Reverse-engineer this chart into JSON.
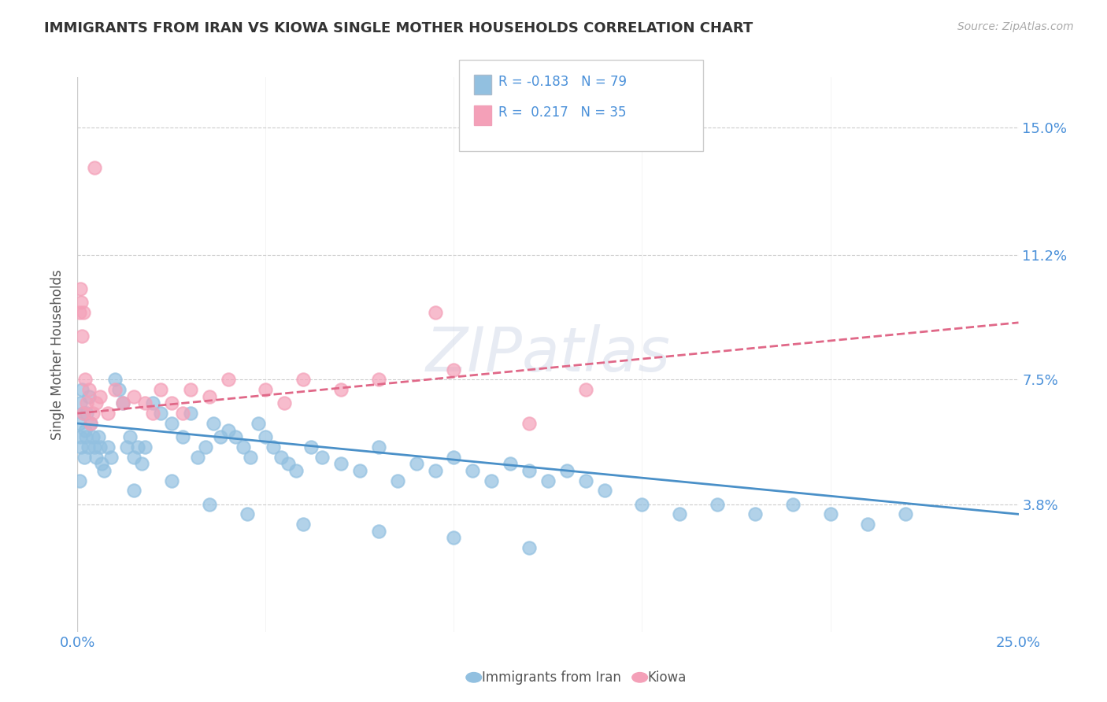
{
  "title": "IMMIGRANTS FROM IRAN VS KIOWA SINGLE MOTHER HOUSEHOLDS CORRELATION CHART",
  "source_text": "Source: ZipAtlas.com",
  "ylabel": "Single Mother Households",
  "xlim": [
    0.0,
    25.0
  ],
  "ylim": [
    0.0,
    16.5
  ],
  "yticks": [
    3.8,
    7.5,
    11.2,
    15.0
  ],
  "ytick_labels": [
    "3.8%",
    "7.5%",
    "11.2%",
    "15.0%"
  ],
  "xtick_labels": [
    "0.0%",
    "25.0%"
  ],
  "legend_label1": "Immigrants from Iran",
  "legend_label2": "Kiowa",
  "color_iran": "#92c0e0",
  "color_kiowa": "#f4a0b8",
  "trendline_iran_color": "#4a90c8",
  "trendline_kiowa_color": "#e06888",
  "watermark": "ZIPatlas",
  "background_color": "#ffffff",
  "iran_scatter": [
    [
      0.05,
      6.2
    ],
    [
      0.07,
      5.8
    ],
    [
      0.08,
      6.8
    ],
    [
      0.1,
      5.5
    ],
    [
      0.12,
      7.2
    ],
    [
      0.15,
      6.5
    ],
    [
      0.18,
      5.2
    ],
    [
      0.2,
      6.0
    ],
    [
      0.22,
      5.8
    ],
    [
      0.25,
      6.5
    ],
    [
      0.28,
      5.5
    ],
    [
      0.3,
      7.0
    ],
    [
      0.35,
      6.2
    ],
    [
      0.4,
      5.8
    ],
    [
      0.45,
      5.5
    ],
    [
      0.5,
      5.2
    ],
    [
      0.55,
      5.8
    ],
    [
      0.6,
      5.5
    ],
    [
      0.65,
      5.0
    ],
    [
      0.7,
      4.8
    ],
    [
      0.8,
      5.5
    ],
    [
      0.9,
      5.2
    ],
    [
      1.0,
      7.5
    ],
    [
      1.1,
      7.2
    ],
    [
      1.2,
      6.8
    ],
    [
      1.3,
      5.5
    ],
    [
      1.4,
      5.8
    ],
    [
      1.5,
      5.2
    ],
    [
      1.6,
      5.5
    ],
    [
      1.7,
      5.0
    ],
    [
      1.8,
      5.5
    ],
    [
      2.0,
      6.8
    ],
    [
      2.2,
      6.5
    ],
    [
      2.5,
      6.2
    ],
    [
      2.8,
      5.8
    ],
    [
      3.0,
      6.5
    ],
    [
      3.2,
      5.2
    ],
    [
      3.4,
      5.5
    ],
    [
      3.6,
      6.2
    ],
    [
      3.8,
      5.8
    ],
    [
      4.0,
      6.0
    ],
    [
      4.2,
      5.8
    ],
    [
      4.4,
      5.5
    ],
    [
      4.6,
      5.2
    ],
    [
      4.8,
      6.2
    ],
    [
      5.0,
      5.8
    ],
    [
      5.2,
      5.5
    ],
    [
      5.4,
      5.2
    ],
    [
      5.6,
      5.0
    ],
    [
      5.8,
      4.8
    ],
    [
      6.2,
      5.5
    ],
    [
      6.5,
      5.2
    ],
    [
      7.0,
      5.0
    ],
    [
      7.5,
      4.8
    ],
    [
      8.0,
      5.5
    ],
    [
      8.5,
      4.5
    ],
    [
      9.0,
      5.0
    ],
    [
      9.5,
      4.8
    ],
    [
      10.0,
      5.2
    ],
    [
      10.5,
      4.8
    ],
    [
      11.0,
      4.5
    ],
    [
      11.5,
      5.0
    ],
    [
      12.0,
      4.8
    ],
    [
      12.5,
      4.5
    ],
    [
      13.0,
      4.8
    ],
    [
      13.5,
      4.5
    ],
    [
      14.0,
      4.2
    ],
    [
      15.0,
      3.8
    ],
    [
      16.0,
      3.5
    ],
    [
      17.0,
      3.8
    ],
    [
      18.0,
      3.5
    ],
    [
      19.0,
      3.8
    ],
    [
      20.0,
      3.5
    ],
    [
      21.0,
      3.2
    ],
    [
      22.0,
      3.5
    ],
    [
      0.05,
      4.5
    ],
    [
      1.5,
      4.2
    ],
    [
      2.5,
      4.5
    ],
    [
      3.5,
      3.8
    ],
    [
      4.5,
      3.5
    ],
    [
      6.0,
      3.2
    ],
    [
      8.0,
      3.0
    ],
    [
      10.0,
      2.8
    ],
    [
      12.0,
      2.5
    ]
  ],
  "kiowa_scatter": [
    [
      0.05,
      9.5
    ],
    [
      0.08,
      10.2
    ],
    [
      0.1,
      9.8
    ],
    [
      0.12,
      8.8
    ],
    [
      0.15,
      9.5
    ],
    [
      0.2,
      7.5
    ],
    [
      0.25,
      6.8
    ],
    [
      0.3,
      7.2
    ],
    [
      0.4,
      6.5
    ],
    [
      0.5,
      6.8
    ],
    [
      0.6,
      7.0
    ],
    [
      0.8,
      6.5
    ],
    [
      1.0,
      7.2
    ],
    [
      1.2,
      6.8
    ],
    [
      1.5,
      7.0
    ],
    [
      1.8,
      6.8
    ],
    [
      2.0,
      6.5
    ],
    [
      2.2,
      7.2
    ],
    [
      2.5,
      6.8
    ],
    [
      2.8,
      6.5
    ],
    [
      3.0,
      7.2
    ],
    [
      3.5,
      7.0
    ],
    [
      4.0,
      7.5
    ],
    [
      5.0,
      7.2
    ],
    [
      5.5,
      6.8
    ],
    [
      6.0,
      7.5
    ],
    [
      7.0,
      7.2
    ],
    [
      8.0,
      7.5
    ],
    [
      9.5,
      9.5
    ],
    [
      10.0,
      7.8
    ],
    [
      12.0,
      6.2
    ],
    [
      13.5,
      7.2
    ],
    [
      0.45,
      13.8
    ],
    [
      0.15,
      6.5
    ],
    [
      0.35,
      6.2
    ]
  ],
  "iran_trendline": {
    "x_start": 0.0,
    "x_end": 25.0,
    "y_start": 6.2,
    "y_end": 3.5
  },
  "kiowa_trendline": {
    "x_start": 0.0,
    "x_end": 25.0,
    "y_start": 6.5,
    "y_end": 9.2
  }
}
